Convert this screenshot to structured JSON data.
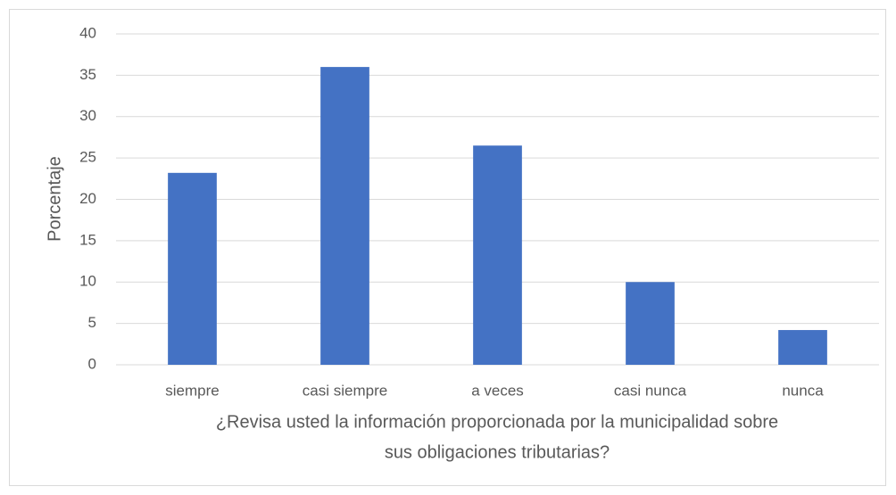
{
  "chart_data": {
    "type": "bar",
    "ylabel": "Porcentaje",
    "xlabel": [
      "¿Revisa usted la información proporcionada por la municipalidad sobre",
      "sus obligaciones tributarias?"
    ],
    "categories": [
      "siempre",
      "casi siempre",
      "a veces",
      "casi nunca",
      "nunca"
    ],
    "values": [
      23.2,
      36,
      26.5,
      10,
      4.2
    ],
    "color": "#4472c4",
    "ylim": [
      0,
      40
    ],
    "yticks": [
      0,
      5,
      10,
      15,
      20,
      25,
      30,
      35,
      40
    ],
    "grid": true
  }
}
